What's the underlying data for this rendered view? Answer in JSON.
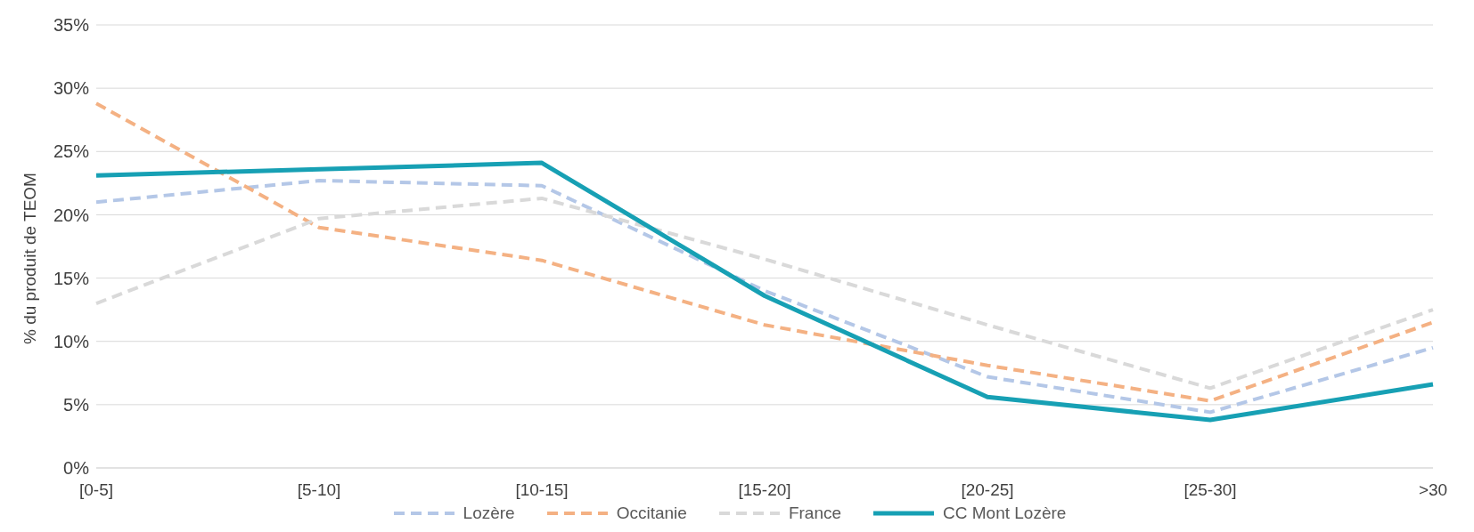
{
  "chart_data": {
    "type": "line",
    "ylabel": "% du produit de TEOM",
    "categories": [
      "[0-5]",
      "[5-10]",
      "[10-15]",
      "[15-20]",
      "[20-25]",
      "[25-30]",
      ">30"
    ],
    "series": [
      {
        "name": "Lozère",
        "color": "#b4c7e7",
        "line_style": "dashed",
        "values": [
          21.0,
          22.7,
          22.3,
          14.0,
          7.2,
          4.4,
          9.5
        ]
      },
      {
        "name": "Occitanie",
        "color": "#f4b183",
        "line_style": "dashed",
        "values": [
          28.8,
          19.0,
          16.4,
          11.3,
          8.1,
          5.3,
          11.5
        ]
      },
      {
        "name": "France",
        "color": "#d9d9d9",
        "line_style": "dashed",
        "values": [
          13.0,
          19.7,
          21.3,
          16.5,
          11.3,
          6.3,
          12.5
        ]
      },
      {
        "name": "CC Mont Lozère",
        "color": "#17a0b4",
        "line_style": "solid",
        "values": [
          23.1,
          23.6,
          24.1,
          13.6,
          5.6,
          3.8,
          6.6
        ]
      }
    ],
    "ylim": [
      0,
      35
    ],
    "yticks": [
      {
        "value": 0,
        "label": "0%"
      },
      {
        "value": 5,
        "label": "5%"
      },
      {
        "value": 10,
        "label": "10%"
      },
      {
        "value": 15,
        "label": "15%"
      },
      {
        "value": 20,
        "label": "20%"
      },
      {
        "value": 25,
        "label": "25%"
      },
      {
        "value": 30,
        "label": "30%"
      },
      {
        "value": 35,
        "label": "35%"
      }
    ],
    "grid": "y",
    "legend": "bottom",
    "marker": "none"
  }
}
